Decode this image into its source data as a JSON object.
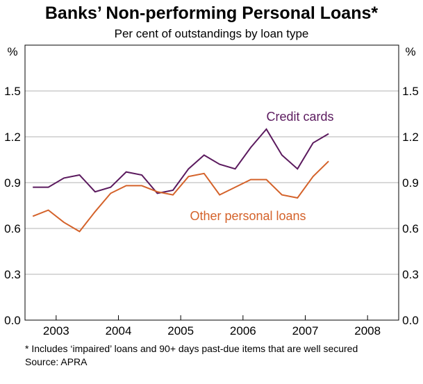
{
  "chart_data": {
    "type": "line",
    "title": "Banks’ Non-performing Personal Loans*",
    "subtitle": "Per cent of outstandings by loan type",
    "y_unit_left": "%",
    "y_unit_right": "%",
    "ylim": [
      0,
      1.8
    ],
    "yticks": [
      0.0,
      0.3,
      0.6,
      0.9,
      1.2,
      1.5
    ],
    "ytick_labels": [
      "0.0",
      "0.3",
      "0.6",
      "0.9",
      "1.2",
      "1.5"
    ],
    "xlim": [
      2002.5,
      2008.5
    ],
    "xticks": [
      2003,
      2004,
      2005,
      2006,
      2007,
      2008
    ],
    "xtick_labels": [
      "2003",
      "2004",
      "2005",
      "2006",
      "2007",
      "2008"
    ],
    "grid": true,
    "series": [
      {
        "name": "Credit cards",
        "color": "#5b1a5e",
        "x": [
          2002.625,
          2002.875,
          2003.125,
          2003.375,
          2003.625,
          2003.875,
          2004.125,
          2004.375,
          2004.625,
          2004.875,
          2005.125,
          2005.375,
          2005.625,
          2005.875,
          2006.125,
          2006.375,
          2006.625,
          2006.875,
          2007.125,
          2007.375,
          2007.625,
          2007.875
        ],
        "values": [
          0.87,
          0.87,
          0.93,
          0.95,
          0.84,
          0.87,
          0.97,
          0.95,
          0.83,
          0.85,
          0.99,
          1.08,
          1.02,
          0.99,
          1.13,
          1.25,
          1.08,
          0.99,
          1.16,
          1.22,
          null,
          null
        ]
      },
      {
        "name": "Other personal loans",
        "color": "#d4622a",
        "x": [
          2002.625,
          2002.875,
          2003.125,
          2003.375,
          2003.625,
          2003.875,
          2004.125,
          2004.375,
          2004.625,
          2004.875,
          2005.125,
          2005.375,
          2005.625,
          2005.875,
          2006.125,
          2006.375,
          2006.625,
          2006.875,
          2007.125,
          2007.375,
          2007.625,
          2007.875
        ],
        "values": [
          0.68,
          0.72,
          0.64,
          0.58,
          0.71,
          0.83,
          0.88,
          0.88,
          0.84,
          0.82,
          0.94,
          0.96,
          0.82,
          0.87,
          0.92,
          0.92,
          0.82,
          0.8,
          0.94,
          1.04,
          null,
          null
        ]
      }
    ],
    "footnote": "*   Includes ‘impaired’ loans and 90+ days past-due items that are well secured",
    "source": "Source: APRA"
  }
}
